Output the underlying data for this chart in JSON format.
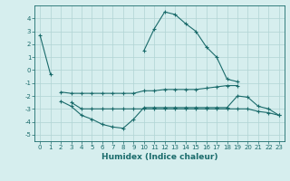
{
  "xlabel": "Humidex (Indice chaleur)",
  "x": [
    0,
    1,
    2,
    3,
    4,
    5,
    6,
    7,
    8,
    9,
    10,
    11,
    12,
    13,
    14,
    15,
    16,
    17,
    18,
    19,
    20,
    21,
    22,
    23
  ],
  "line1": [
    2.7,
    -0.3,
    null,
    null,
    null,
    null,
    null,
    null,
    null,
    null,
    1.5,
    3.2,
    4.5,
    4.3,
    3.6,
    3.0,
    1.8,
    1.0,
    -0.7,
    -0.9,
    null,
    null,
    null,
    null
  ],
  "line2": [
    null,
    null,
    -1.7,
    -1.8,
    -1.8,
    -1.8,
    -1.8,
    -1.8,
    -1.8,
    -1.8,
    -1.6,
    -1.6,
    -1.5,
    -1.5,
    -1.5,
    -1.5,
    -1.4,
    -1.3,
    -1.2,
    -1.2,
    null,
    null,
    null,
    null
  ],
  "line3": [
    null,
    null,
    -2.4,
    -2.8,
    -3.5,
    -3.8,
    -4.2,
    -4.4,
    -4.5,
    -3.8,
    -2.9,
    -2.9,
    -2.9,
    -2.9,
    -2.9,
    -2.9,
    -2.9,
    -2.9,
    -2.9,
    -2.0,
    -2.1,
    -2.8,
    -3.0,
    -3.5
  ],
  "line4": [
    null,
    null,
    null,
    -2.5,
    -3.0,
    -3.0,
    -3.0,
    -3.0,
    -3.0,
    -3.0,
    -3.0,
    -3.0,
    -3.0,
    -3.0,
    -3.0,
    -3.0,
    -3.0,
    -3.0,
    -3.0,
    -3.0,
    -3.0,
    -3.2,
    -3.3,
    -3.5
  ],
  "color": "#1a6b6b",
  "bg_color": "#d6eeee",
  "grid_color": "#b0d4d4",
  "ylim": [
    -5.5,
    5
  ],
  "xlim": [
    -0.5,
    23.5
  ],
  "yticks": [
    -5,
    -4,
    -3,
    -2,
    -1,
    0,
    1,
    2,
    3,
    4
  ],
  "xticks": [
    0,
    1,
    2,
    3,
    4,
    5,
    6,
    7,
    8,
    9,
    10,
    11,
    12,
    13,
    14,
    15,
    16,
    17,
    18,
    19,
    20,
    21,
    22,
    23
  ],
  "linewidth": 0.8,
  "markersize": 3.0,
  "xlabel_fontsize": 6.5,
  "tick_fontsize": 5.0
}
